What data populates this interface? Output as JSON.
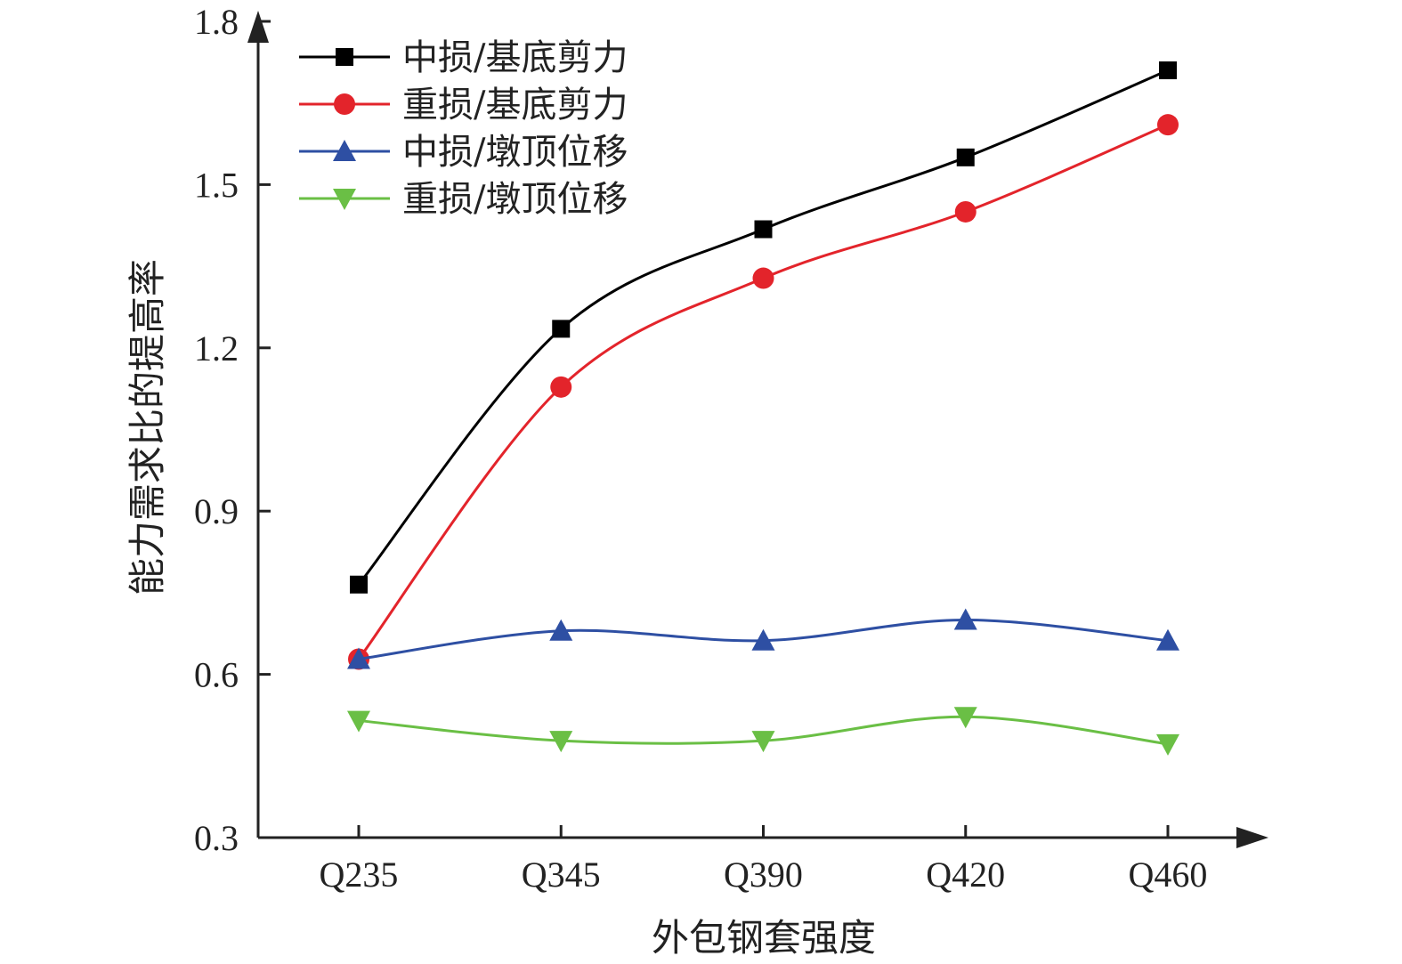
{
  "chart_data": {
    "type": "line",
    "title": "",
    "xlabel": "外包钢套强度",
    "ylabel": "能力需求比的提高率",
    "categories": [
      "Q235",
      "Q345",
      "Q390",
      "Q420",
      "Q460"
    ],
    "ylim": [
      0.3,
      1.8
    ],
    "yticks": [
      "0.3",
      "0.6",
      "0.9",
      "1.2",
      "1.5",
      "1.8"
    ],
    "grid": false,
    "legend_position": "top-left",
    "smooth": true,
    "series": [
      {
        "name": "中损/基底剪力",
        "color": "#000000",
        "marker": "square",
        "values": [
          0.765,
          1.235,
          1.418,
          1.55,
          1.71
        ]
      },
      {
        "name": "重损/基底剪力",
        "color": "#e3242b",
        "marker": "circle",
        "values": [
          0.628,
          1.128,
          1.328,
          1.45,
          1.61
        ]
      },
      {
        "name": "中损/墩顶位移",
        "color": "#2e4fa3",
        "marker": "triangle-up",
        "values": [
          0.628,
          0.68,
          0.662,
          0.7,
          0.662
        ]
      },
      {
        "name": "重损/墩顶位移",
        "color": "#6abf45",
        "marker": "triangle-down",
        "values": [
          0.515,
          0.478,
          0.478,
          0.522,
          0.472
        ]
      }
    ]
  }
}
